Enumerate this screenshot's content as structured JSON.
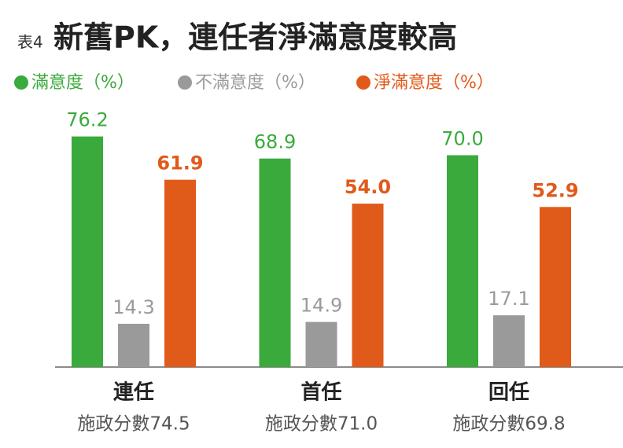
{
  "chart_data": {
    "type": "bar",
    "label": "表4",
    "title": "新舊PK，連任者淨滿意度較高",
    "categories": [
      "連任",
      "首任",
      "回任"
    ],
    "category_sublabels": [
      "施政分數74.5",
      "施政分數71.0",
      "施政分數69.8"
    ],
    "series": [
      {
        "name": "滿意度（%）",
        "color": "#3aaa3c",
        "values": [
          76.2,
          68.9,
          70.0
        ],
        "value_labels": [
          "76.2",
          "68.9",
          "70.0"
        ]
      },
      {
        "name": "不滿意度（%）",
        "color": "#9a9a9a",
        "values": [
          14.3,
          14.9,
          17.1
        ]
      },
      {
        "name": "淨滿意度（%）",
        "color": "#e05a1a",
        "values": [
          61.9,
          54.0,
          52.9
        ],
        "value_labels": [
          "61.9",
          "54.0",
          "52.9"
        ]
      }
    ]
  }
}
